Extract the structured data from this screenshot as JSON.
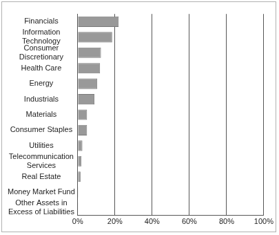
{
  "chart_data": {
    "type": "bar",
    "orientation": "horizontal",
    "categories": [
      "Financials",
      "Information Technology",
      "Consumer Discretionary",
      "Health Care",
      "Energy",
      "Industrials",
      "Materials",
      "Consumer Staples",
      "Utilities",
      "Telecommunication Services",
      "Real Estate",
      "Money Market Fund",
      "Other Assets in Excess of Liabilities"
    ],
    "values": [
      22,
      18.5,
      12.5,
      12,
      10.5,
      9,
      5,
      5,
      2.5,
      2,
      1.5,
      0.3,
      0.1
    ],
    "color": "#999999",
    "xlim": [
      0,
      100
    ],
    "xticks": [
      {
        "value": 0,
        "label": "0%"
      },
      {
        "value": 20,
        "label": "20%"
      },
      {
        "value": 40,
        "label": "40%"
      },
      {
        "value": 60,
        "label": "60%"
      },
      {
        "value": 80,
        "label": "80%"
      },
      {
        "value": 100,
        "label": "100%"
      }
    ],
    "grid": true
  }
}
